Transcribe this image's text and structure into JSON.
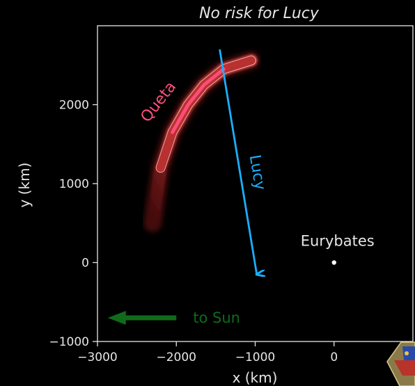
{
  "chart_data": {
    "type": "scatter",
    "title": "No risk for Lucy",
    "xlabel": "x (km)",
    "ylabel": "y (km)",
    "xlim": [
      -3000,
      1000
    ],
    "ylim": [
      -1000,
      3000
    ],
    "xticks": [
      {
        "value": -3000,
        "label": "−3000"
      },
      {
        "value": -2000,
        "label": "−2000"
      },
      {
        "value": -1000,
        "label": "−1000"
      },
      {
        "value": 0,
        "label": "0"
      }
    ],
    "yticks": [
      {
        "value": -1000,
        "label": "−1000"
      },
      {
        "value": 0,
        "label": "0"
      },
      {
        "value": 1000,
        "label": "1000"
      },
      {
        "value": 2000,
        "label": "2000"
      }
    ],
    "grid": false,
    "queta_arc": {
      "label": "Queta",
      "color": "#ff4f7b",
      "points": [
        [
          -2300,
          500
        ],
        [
          -2200,
          1200
        ],
        [
          -2050,
          1650
        ],
        [
          -1850,
          2000
        ],
        [
          -1650,
          2250
        ],
        [
          -1400,
          2450
        ],
        [
          -1050,
          2560
        ]
      ]
    },
    "lucy_track": {
      "label": "Lucy",
      "color": "#1ab0ff",
      "start": [
        -1450,
        2700
      ],
      "end": [
        -980,
        -150
      ]
    },
    "eurybates": {
      "label": "Eurybates",
      "x": 0,
      "y": 0,
      "color": "#ffffff"
    },
    "sun_arrow": {
      "label": "to Sun",
      "color": "#0f6b1a",
      "from": [
        -2000,
        -700
      ],
      "to": [
        -2870,
        -700
      ]
    },
    "colors": {
      "background": "#000000",
      "axes": "#e6e6e6"
    }
  }
}
